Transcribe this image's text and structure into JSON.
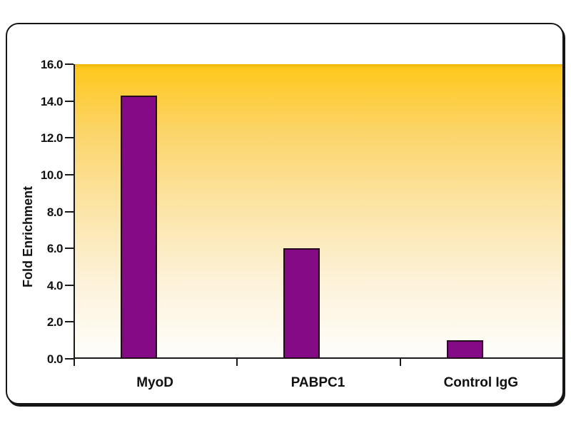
{
  "chart_data": {
    "type": "bar",
    "title": "",
    "categories": [
      "MyoD",
      "PABPC1",
      "Control IgG"
    ],
    "values": [
      14.3,
      6.0,
      1.0
    ],
    "xlabel": "",
    "ylabel": "Fold Enrichment",
    "ylim": [
      0,
      16
    ],
    "ytick_step": 2,
    "ytick_labels": [
      "0.0",
      "2.0",
      "4.0",
      "6.0",
      "8.0",
      "10.0",
      "12.0",
      "14.0",
      "16.0"
    ],
    "grid": "off",
    "legend": "none",
    "bar_color": "#850a85",
    "bar_border_color": "#250a1d",
    "plot_bg_gradient_top": "#ffc81d",
    "plot_bg_gradient_bottom": "#fefdf9",
    "axis_color": "#1a1a1a"
  }
}
